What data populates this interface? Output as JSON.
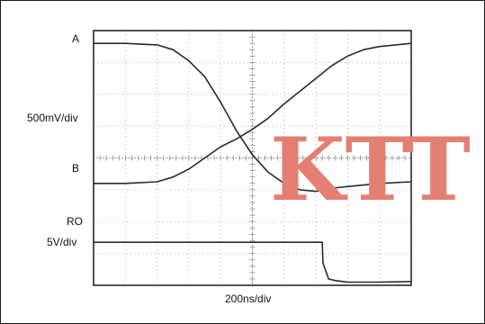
{
  "chart_data": {
    "type": "line",
    "title": "",
    "xlabel": "200ns/div",
    "xlim": [
      0,
      10
    ],
    "x_unit": "div",
    "ylim": [
      0,
      8
    ],
    "y_unit": "div",
    "y_scale_labels": [
      "500mV/div",
      "RO 5V/div"
    ],
    "grid": true,
    "series": [
      {
        "name": "A",
        "x": [
          0.0,
          1.0,
          2.0,
          2.5,
          3.0,
          3.5,
          4.0,
          4.5,
          5.0,
          5.5,
          6.0,
          6.5,
          7.0,
          7.5,
          8.0,
          9.0,
          10.0
        ],
        "y": [
          7.6,
          7.6,
          7.55,
          7.4,
          7.05,
          6.55,
          5.75,
          4.85,
          4.1,
          3.55,
          3.2,
          3.0,
          2.95,
          3.05,
          3.1,
          3.2,
          3.25
        ]
      },
      {
        "name": "B",
        "x": [
          0.0,
          1.0,
          2.0,
          2.5,
          3.0,
          3.5,
          4.0,
          4.5,
          5.0,
          5.5,
          6.0,
          6.5,
          7.0,
          7.5,
          8.0,
          8.5,
          9.0,
          9.5,
          10.0
        ],
        "y": [
          3.2,
          3.2,
          3.25,
          3.4,
          3.65,
          4.0,
          4.35,
          4.6,
          4.9,
          5.25,
          5.7,
          6.1,
          6.5,
          6.9,
          7.2,
          7.4,
          7.5,
          7.55,
          7.6
        ]
      },
      {
        "name": "RO",
        "x": [
          0.0,
          2.0,
          4.0,
          6.0,
          7.2,
          7.22,
          7.4,
          7.6,
          8.0,
          9.0,
          10.0
        ],
        "y": [
          1.35,
          1.35,
          1.35,
          1.35,
          1.35,
          0.7,
          0.2,
          0.15,
          0.1,
          0.1,
          0.12
        ]
      }
    ]
  },
  "labels": {
    "a": "A",
    "scale1": "500mV/div",
    "b": "B",
    "ro": "RO",
    "scale2": "5V/div",
    "xlabel": "200ns/div"
  },
  "watermark": "KTT",
  "colors": {
    "trace": "#2a2a2a",
    "grid": "#b8b8b8",
    "frame": "#1a1a1a",
    "watermark": "#e57f73"
  }
}
